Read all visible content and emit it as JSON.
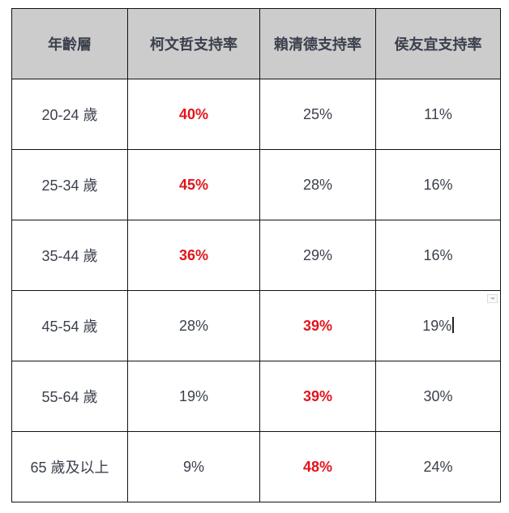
{
  "headers": [
    "年齡層",
    "柯文哲支持率",
    "賴清德支持率",
    "侯友宜支持率"
  ],
  "highlight_color": "#e3141c",
  "rows": [
    {
      "age": "20-24 歲",
      "values": [
        "40%",
        "25%",
        "11%"
      ],
      "highlight": 0
    },
    {
      "age": "25-34 歲",
      "values": [
        "45%",
        "28%",
        "16%"
      ],
      "highlight": 0
    },
    {
      "age": "35-44 歲",
      "values": [
        "36%",
        "29%",
        "16%"
      ],
      "highlight": 0
    },
    {
      "age": "45-54 歲",
      "values": [
        "28%",
        "39%",
        "19%"
      ],
      "highlight": 1
    },
    {
      "age": "55-64 歲",
      "values": [
        "19%",
        "39%",
        "30%"
      ],
      "highlight": 1
    },
    {
      "age": "65 歲及以上",
      "values": [
        "9%",
        "48%",
        "24%"
      ],
      "highlight": 1
    }
  ]
}
